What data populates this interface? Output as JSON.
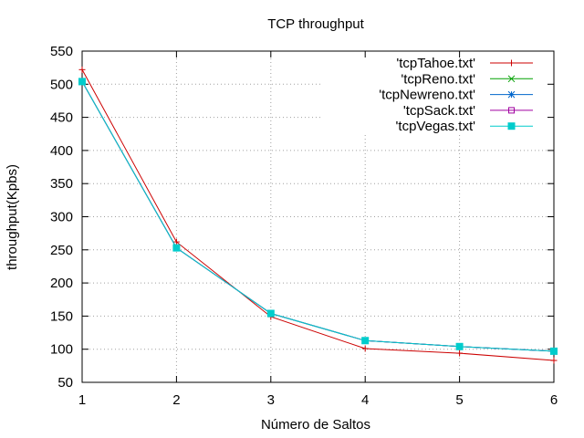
{
  "chart_data": {
    "type": "line",
    "title": "TCP throughput",
    "xlabel": "Número de Saltos",
    "ylabel": "throughput(Kpbs)",
    "xlim": [
      1,
      6
    ],
    "ylim": [
      50,
      550
    ],
    "xticks": [
      1,
      2,
      3,
      4,
      5,
      6
    ],
    "yticks": [
      50,
      100,
      150,
      200,
      250,
      300,
      350,
      400,
      450,
      500,
      550
    ],
    "grid": true,
    "legend_position": "top-right",
    "x": [
      1,
      2,
      3,
      4,
      5,
      6
    ],
    "series": [
      {
        "name": "'tcpTahoe.txt'",
        "color": "#cc0000",
        "marker": "plus",
        "values": [
          522,
          262,
          149,
          101,
          94,
          83
        ]
      },
      {
        "name": "'tcpReno.txt'",
        "color": "#00a000",
        "marker": "cross",
        "values": [
          504,
          253,
          154,
          113,
          104,
          97
        ]
      },
      {
        "name": "'tcpNewreno.txt'",
        "color": "#0066cc",
        "marker": "star",
        "values": [
          504,
          253,
          154,
          113,
          104,
          97
        ]
      },
      {
        "name": "'tcpSack.txt'",
        "color": "#a000a0",
        "marker": "square-open",
        "values": [
          504,
          253,
          154,
          113,
          104,
          97
        ]
      },
      {
        "name": "'tcpVegas.txt'",
        "color": "#00cccc",
        "marker": "square-filled",
        "values": [
          504,
          253,
          154,
          113,
          104,
          97
        ]
      }
    ]
  }
}
